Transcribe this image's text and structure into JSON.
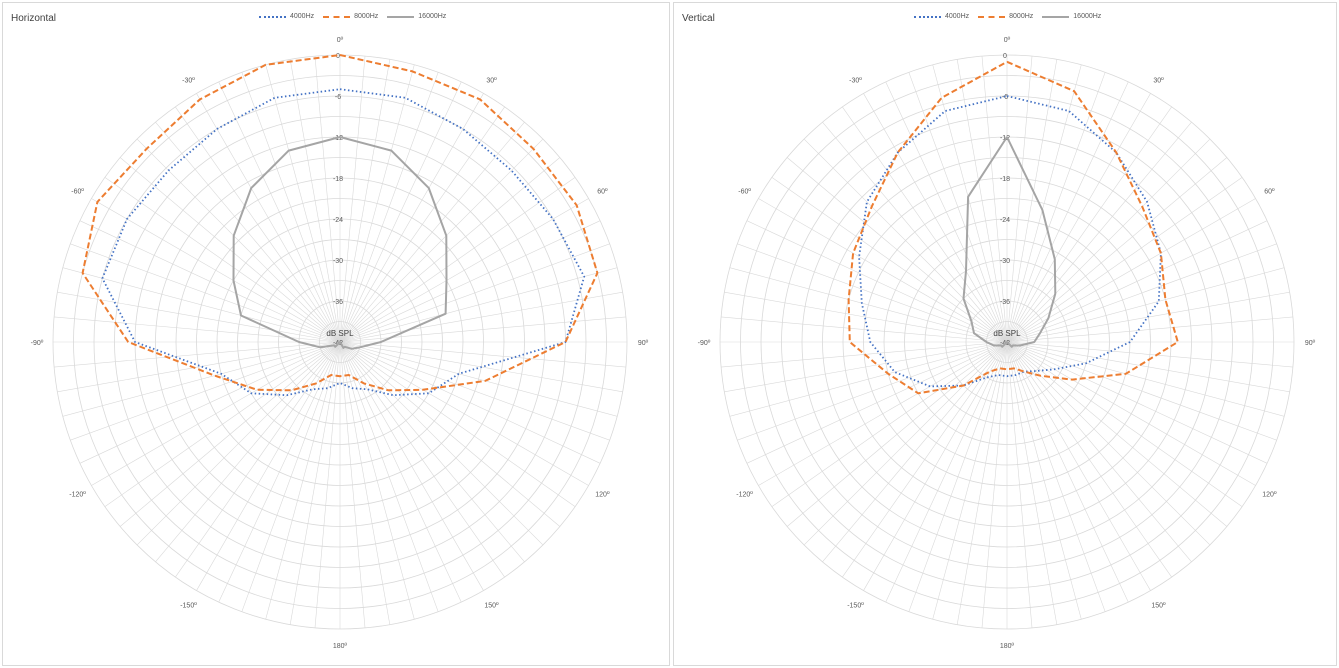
{
  "colors": {
    "grid": "#d9d9d9",
    "text": "#595959",
    "series_4000": "#4472c4",
    "series_8000": "#ed7d31",
    "series_16000": "#a5a5a5"
  },
  "legend": [
    "4000Hz",
    "8000Hz",
    "16000Hz"
  ],
  "chart_data": [
    {
      "type": "polar-line",
      "title": "Horizontal",
      "center_label": "dB SPL",
      "r_axis": {
        "min": -42,
        "max": 0,
        "ticks": [
          0,
          -6,
          -12,
          -18,
          -24,
          -30,
          -36,
          -42
        ],
        "tick_labels": [
          "0",
          "-6",
          "-12",
          "-18",
          "-24",
          "-30",
          "-36",
          "-42"
        ]
      },
      "angle_labels": [
        {
          "deg": 0,
          "label": "0º"
        },
        {
          "deg": 30,
          "label": "30º"
        },
        {
          "deg": 60,
          "label": "60º"
        },
        {
          "deg": 90,
          "label": "90º"
        },
        {
          "deg": 120,
          "label": "120º"
        },
        {
          "deg": 150,
          "label": "150º"
        },
        {
          "deg": 180,
          "label": "180º"
        },
        {
          "deg": -150,
          "label": "-150º"
        },
        {
          "deg": -120,
          "label": "-120º"
        },
        {
          "deg": -90,
          "label": "-90º"
        },
        {
          "deg": -60,
          "label": "-60º"
        },
        {
          "deg": -30,
          "label": "-30º"
        }
      ],
      "grid": true,
      "legend_position": "top",
      "series": [
        {
          "name": "4000Hz",
          "style": "dotted",
          "angles": [
            0,
            15,
            30,
            45,
            60,
            75,
            90,
            105,
            120,
            135,
            150,
            165,
            180,
            195,
            210,
            225,
            240,
            255,
            270,
            285,
            300,
            315,
            330,
            345
          ],
          "values": [
            -5,
            -5,
            -6,
            -6.5,
            -6,
            -5,
            -9,
            -24,
            -27,
            -31,
            -34,
            -35,
            -36,
            -35,
            -34,
            -31,
            -27,
            -24,
            -12,
            -6,
            -6,
            -6.5,
            -6,
            -5
          ]
        },
        {
          "name": "8000Hz",
          "style": "dashed",
          "angles": [
            0,
            15,
            30,
            45,
            60,
            75,
            90,
            105,
            120,
            135,
            150,
            165,
            180,
            195,
            210,
            225,
            240,
            255,
            270,
            285,
            300,
            315,
            330,
            345
          ],
          "values": [
            0,
            -1,
            -1,
            -2,
            -2,
            -3,
            -9,
            -20,
            -28,
            -32,
            -35,
            -37,
            -37,
            -37,
            -35,
            -32,
            -28,
            -23,
            -11,
            -3,
            -1,
            -2,
            -1,
            0
          ]
        },
        {
          "name": "16000Hz",
          "style": "solid",
          "angles": [
            0,
            15,
            30,
            45,
            60,
            75,
            90,
            105,
            120,
            135,
            150,
            165,
            180,
            195,
            210,
            225,
            240,
            255,
            270,
            285,
            300,
            315,
            330,
            345
          ],
          "values": [
            -12,
            -13,
            -16,
            -20,
            -24,
            -26,
            -36,
            -39,
            -40,
            -41,
            -41,
            -42,
            -42,
            -42,
            -42,
            -41,
            -41,
            -39,
            -36,
            -27,
            -24,
            -20,
            -16,
            -13
          ]
        }
      ]
    },
    {
      "type": "polar-line",
      "title": "Vertical",
      "center_label": "dB SPL",
      "r_axis": {
        "min": -42,
        "max": 0,
        "ticks": [
          0,
          -6,
          -12,
          -18,
          -24,
          -30,
          -36,
          -42
        ],
        "tick_labels": [
          "0",
          "-6",
          "-12",
          "-18",
          "-24",
          "-30",
          "-36",
          "-42"
        ]
      },
      "angle_labels": [
        {
          "deg": 0,
          "label": "0º"
        },
        {
          "deg": 30,
          "label": "30º"
        },
        {
          "deg": 60,
          "label": "60º"
        },
        {
          "deg": 90,
          "label": "90º"
        },
        {
          "deg": 120,
          "label": "120º"
        },
        {
          "deg": 150,
          "label": "150º"
        },
        {
          "deg": 180,
          "label": "180º"
        },
        {
          "deg": -150,
          "label": "-150º"
        },
        {
          "deg": -120,
          "label": "-120º"
        },
        {
          "deg": -90,
          "label": "-90º"
        },
        {
          "deg": -60,
          "label": "-60º"
        },
        {
          "deg": -30,
          "label": "-30º"
        }
      ],
      "grid": true,
      "legend_position": "top",
      "series": [
        {
          "name": "4000Hz",
          "style": "dotted",
          "angles": [
            0,
            15,
            30,
            45,
            60,
            75,
            90,
            105,
            120,
            135,
            150,
            165,
            180,
            195,
            210,
            225,
            240,
            255,
            270,
            285,
            300,
            315,
            330,
            345
          ],
          "values": [
            -6,
            -7,
            -10,
            -13,
            -16,
            -19,
            -24,
            -30,
            -34,
            -36,
            -37,
            -37,
            -37,
            -37,
            -36,
            -33,
            -29,
            -25,
            -22,
            -20,
            -17,
            -13,
            -10,
            -7
          ]
        },
        {
          "name": "8000Hz",
          "style": "dashed",
          "angles": [
            0,
            15,
            30,
            45,
            60,
            75,
            90,
            105,
            120,
            135,
            150,
            165,
            180,
            195,
            210,
            225,
            240,
            255,
            270,
            285,
            300,
            315,
            330,
            345
          ],
          "values": [
            -1,
            -4,
            -10,
            -14,
            -16,
            -18,
            -17,
            -24,
            -31,
            -35,
            -37,
            -38,
            -38,
            -38,
            -37,
            -33,
            -27,
            -24,
            -19,
            -18,
            -16,
            -14,
            -10,
            -5
          ]
        },
        {
          "name": "16000Hz",
          "style": "solid",
          "angles": [
            0,
            15,
            30,
            45,
            60,
            75,
            90,
            105,
            120,
            135,
            150,
            165,
            180,
            195,
            210,
            225,
            240,
            255,
            270,
            285,
            300,
            315,
            330,
            345
          ],
          "values": [
            -12,
            -22,
            -28,
            -32,
            -35,
            -37,
            -38,
            -40,
            -41,
            -41,
            -42,
            -42,
            -42,
            -42,
            -42,
            -41,
            -41,
            -40,
            -39,
            -37,
            -36,
            -33,
            -30,
            -20
          ]
        }
      ]
    }
  ]
}
